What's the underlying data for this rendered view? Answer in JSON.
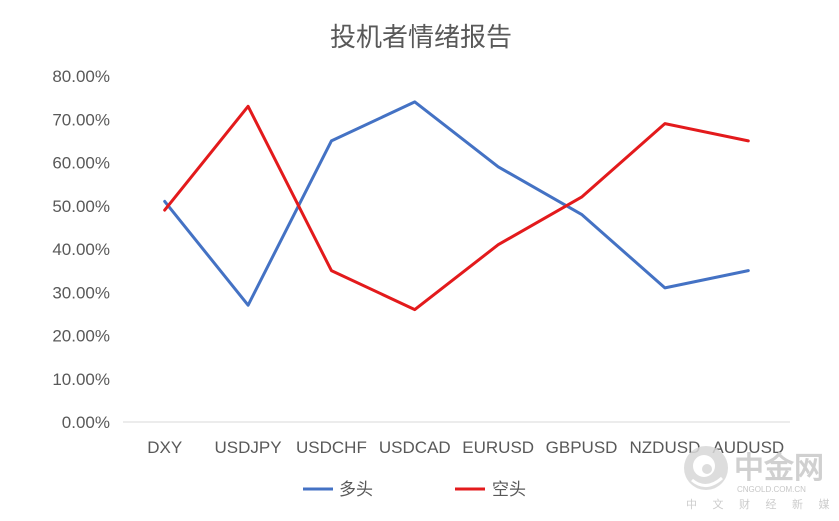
{
  "chart_data": {
    "type": "line",
    "title": "投机者情绪报告",
    "categories": [
      "DXY",
      "USDJPY",
      "USDCHF",
      "USDCAD",
      "EURUSD",
      "GBPUSD",
      "NZDUSD",
      "AUDUSD"
    ],
    "series": [
      {
        "name": "多头",
        "color": "#4472c4",
        "values": [
          51,
          27,
          65,
          74,
          59,
          48,
          31,
          35
        ]
      },
      {
        "name": "空头",
        "color": "#e31a1c",
        "values": [
          49,
          73,
          35,
          26,
          41,
          52,
          69,
          65
        ]
      }
    ],
    "y_ticks": [
      "0.00%",
      "10.00%",
      "20.00%",
      "30.00%",
      "40.00%",
      "50.00%",
      "60.00%",
      "70.00%",
      "80.00%"
    ],
    "ylim": [
      0,
      80
    ],
    "grid": false,
    "legend": "bottom"
  },
  "watermark": {
    "brand": "中金网",
    "domain": "CNGOLD.COM.CN",
    "tagline": "中 文 财 经 新 媒 体",
    "colors": {
      "logo": "#d8d8d8"
    }
  }
}
